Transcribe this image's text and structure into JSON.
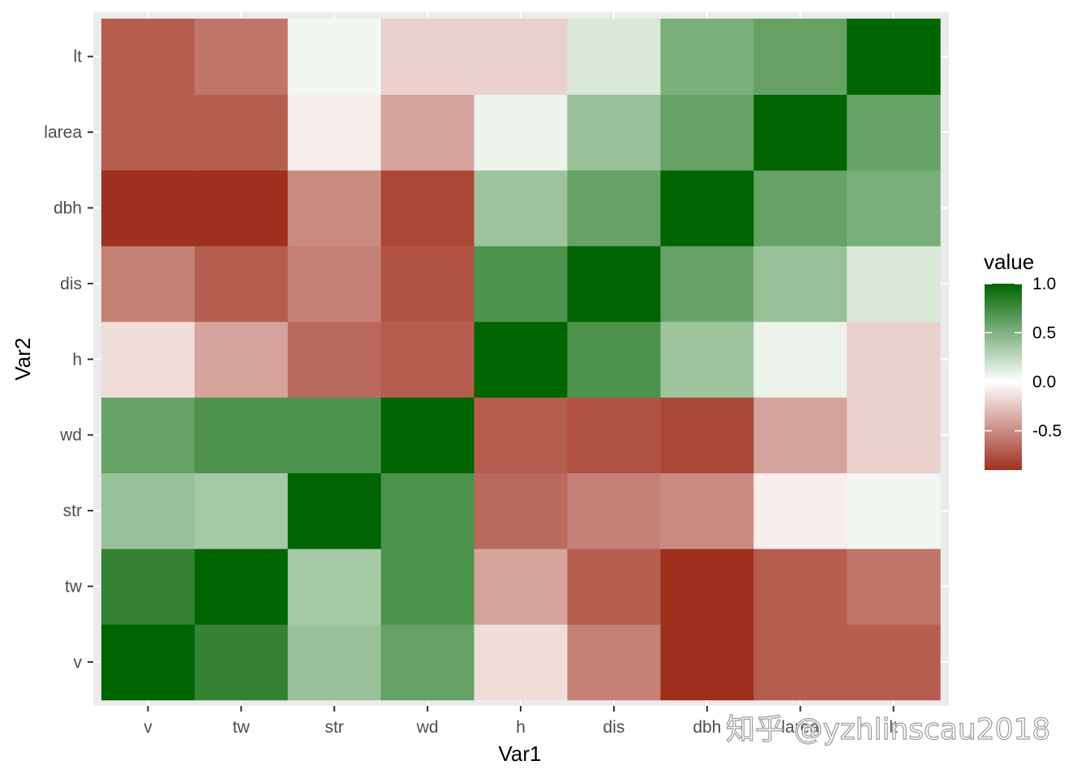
{
  "chart_data": {
    "type": "heatmap",
    "title": "",
    "xlabel": "Var1",
    "ylabel": "Var2",
    "x_categories": [
      "v",
      "tw",
      "str",
      "wd",
      "h",
      "dis",
      "dbh",
      "larea",
      "lt"
    ],
    "y_categories": [
      "v",
      "tw",
      "str",
      "wd",
      "h",
      "dis",
      "dbh",
      "larea",
      "lt"
    ],
    "values": [
      [
        1.0,
        0.8,
        0.4,
        0.6,
        -0.15,
        -0.55,
        -0.9,
        -0.7,
        -0.7
      ],
      [
        0.8,
        1.0,
        0.35,
        0.7,
        -0.4,
        -0.7,
        -0.9,
        -0.7,
        -0.6
      ],
      [
        0.4,
        0.35,
        1.0,
        0.7,
        -0.65,
        -0.55,
        -0.5,
        -0.08,
        0.05
      ],
      [
        0.6,
        0.7,
        0.7,
        1.0,
        -0.7,
        -0.75,
        -0.8,
        -0.4,
        -0.2
      ],
      [
        -0.15,
        -0.4,
        -0.65,
        -0.7,
        1.0,
        0.7,
        0.38,
        0.08,
        -0.2
      ],
      [
        -0.55,
        -0.7,
        -0.55,
        -0.75,
        0.7,
        1.0,
        0.6,
        0.4,
        0.15
      ],
      [
        -0.9,
        -0.9,
        -0.5,
        -0.8,
        0.38,
        0.6,
        1.0,
        0.6,
        0.52
      ],
      [
        -0.7,
        -0.7,
        -0.08,
        -0.4,
        0.08,
        0.4,
        0.6,
        1.0,
        0.6
      ],
      [
        -0.7,
        -0.6,
        0.05,
        -0.2,
        -0.2,
        0.15,
        0.52,
        0.6,
        1.0
      ]
    ],
    "legend": {
      "title": "value",
      "placement": "right",
      "ticks": [
        1.0,
        0.5,
        0.0,
        -0.5
      ],
      "tick_labels": [
        "1.0",
        "0.5",
        "0.0",
        "-0.5"
      ],
      "range": [
        -0.9,
        1.0
      ]
    },
    "colors": {
      "low": "#a0301e",
      "mid": "#ffffff",
      "high": "#006400",
      "panel_background": "#ebebeb",
      "grid": "#ffffff"
    },
    "grid": true
  },
  "watermark": "知乎 @yzhlinscau2018"
}
